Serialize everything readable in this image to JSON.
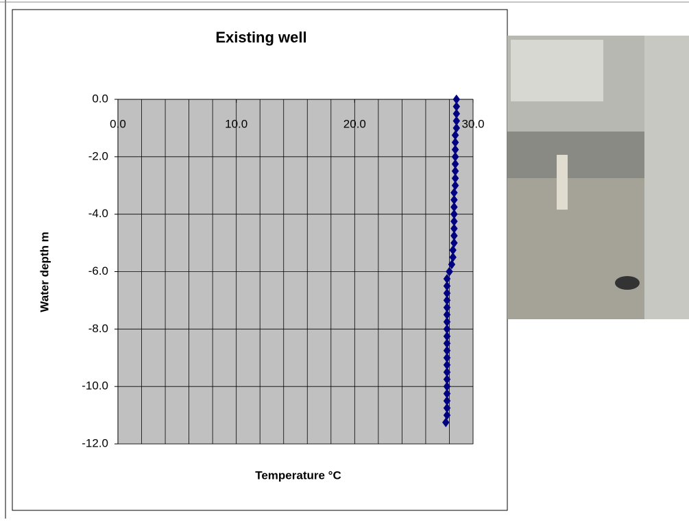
{
  "chart_data": {
    "type": "scatter",
    "title": "Existing well",
    "x_label": "Temperature °C",
    "y_label": "Water depth m",
    "xlim": [
      0,
      30
    ],
    "xticks": [
      {
        "value": 0,
        "label": "0.0"
      },
      {
        "value": 10,
        "label": "10.0"
      },
      {
        "value": 20,
        "label": "20.0"
      },
      {
        "value": 30,
        "label": "30.0"
      }
    ],
    "xgrid": [
      2,
      4,
      6,
      8,
      10,
      12,
      14,
      16,
      18,
      20,
      22,
      24,
      26,
      28,
      30
    ],
    "ylim": [
      -12,
      0
    ],
    "yticks": [
      {
        "value": 0,
        "label": "0.0"
      },
      {
        "value": -2,
        "label": "-2.0"
      },
      {
        "value": -4,
        "label": "-4.0"
      },
      {
        "value": -6,
        "label": "-6.0"
      },
      {
        "value": -8,
        "label": "-8.0"
      },
      {
        "value": -10,
        "label": "-10.0"
      },
      {
        "value": -12,
        "label": "-12.0"
      }
    ],
    "grid": true,
    "series": [
      {
        "color": "#000080",
        "x": [
          28.6,
          28.6,
          28.6,
          28.6,
          28.6,
          28.5,
          28.5,
          28.5,
          28.5,
          28.5,
          28.5,
          28.5,
          28.5,
          28.4,
          28.4,
          28.4,
          28.4,
          28.4,
          28.4,
          28.4,
          28.4,
          28.3,
          28.3,
          28.2,
          28.0,
          27.8,
          27.8,
          27.8,
          27.8,
          27.8,
          27.8,
          27.8,
          27.8,
          27.8,
          27.8,
          27.8,
          27.8,
          27.8,
          27.8,
          27.8,
          27.8,
          27.8,
          27.8,
          27.8,
          27.8,
          27.7
        ],
        "y": [
          0,
          -0.25,
          -0.5,
          -0.75,
          -1,
          -1.25,
          -1.5,
          -1.75,
          -2,
          -2.25,
          -2.5,
          -2.75,
          -3,
          -3.25,
          -3.5,
          -3.75,
          -4,
          -4.25,
          -4.5,
          -4.75,
          -5,
          -5.25,
          -5.5,
          -5.75,
          -6,
          -6.25,
          -6.5,
          -6.75,
          -7,
          -7.25,
          -7.5,
          -7.75,
          -8,
          -8.25,
          -8.5,
          -8.75,
          -9,
          -9.25,
          -9.5,
          -9.75,
          -10,
          -10.25,
          -10.5,
          -10.75,
          -11,
          -11.25
        ]
      }
    ]
  }
}
